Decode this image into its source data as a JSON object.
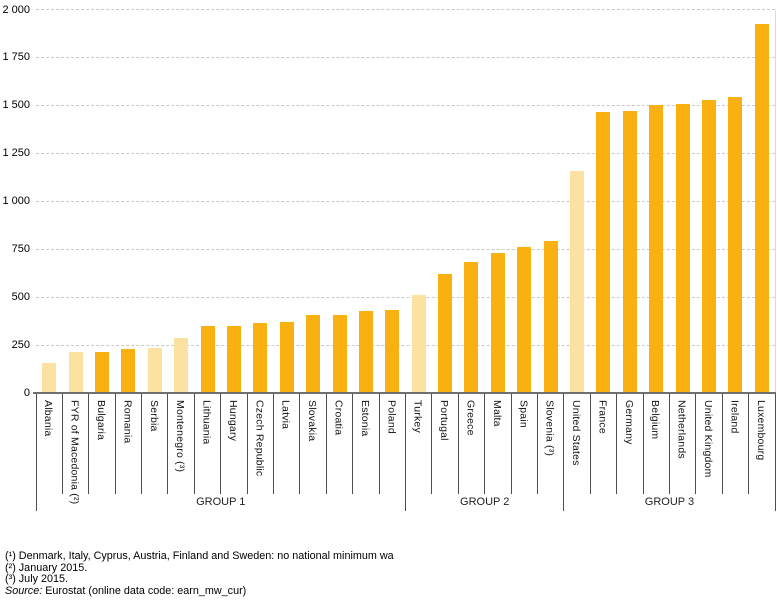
{
  "chart_data": {
    "type": "bar",
    "title": "",
    "xlabel": "",
    "ylabel": "",
    "y_axis": {
      "min": 0,
      "max": 2000,
      "step": 250,
      "tick_labels": [
        "0",
        "250",
        "500",
        "750",
        "1 000",
        "1 250",
        "1 500",
        "1 750",
        "2 000"
      ],
      "grid": "dashed"
    },
    "legend": "none",
    "colors": {
      "bar_dark": "#F9B112",
      "bar_light": "#FCE2A0",
      "gridline": "#C9C9C9",
      "axis": "#6F6F6F",
      "separator": "#4D4D4D",
      "text": "#000000"
    },
    "bars": [
      {
        "label": "Albania",
        "value": 157,
        "shade": "light"
      },
      {
        "label": "FYR of Macedonia (²)",
        "value": 213,
        "shade": "light"
      },
      {
        "label": "Bulgaria",
        "value": 215,
        "shade": "dark"
      },
      {
        "label": "Romania",
        "value": 232,
        "shade": "dark"
      },
      {
        "label": "Serbia",
        "value": 235,
        "shade": "light"
      },
      {
        "label": "Montenegro (³)",
        "value": 288,
        "shade": "light"
      },
      {
        "label": "Lithuania",
        "value": 350,
        "shade": "dark"
      },
      {
        "label": "Hungary",
        "value": 351,
        "shade": "dark"
      },
      {
        "label": "Czech Republic",
        "value": 366,
        "shade": "dark"
      },
      {
        "label": "Latvia",
        "value": 370,
        "shade": "dark"
      },
      {
        "label": "Slovakia",
        "value": 405,
        "shade": "dark"
      },
      {
        "label": "Croatia",
        "value": 408,
        "shade": "dark"
      },
      {
        "label": "Estonia",
        "value": 430,
        "shade": "dark"
      },
      {
        "label": "Poland",
        "value": 434,
        "shade": "dark"
      },
      {
        "label": "Turkey",
        "value": 511,
        "shade": "light"
      },
      {
        "label": "Portugal",
        "value": 618,
        "shade": "dark"
      },
      {
        "label": "Greece",
        "value": 684,
        "shade": "dark"
      },
      {
        "label": "Malta",
        "value": 728,
        "shade": "dark"
      },
      {
        "label": "Spain",
        "value": 764,
        "shade": "dark"
      },
      {
        "label": "Slovenia (³)",
        "value": 791,
        "shade": "dark"
      },
      {
        "label": "United States",
        "value": 1157,
        "shade": "light"
      },
      {
        "label": "France",
        "value": 1467,
        "shade": "dark"
      },
      {
        "label": "Germany",
        "value": 1473,
        "shade": "dark"
      },
      {
        "label": "Belgium",
        "value": 1502,
        "shade": "dark"
      },
      {
        "label": "Netherlands",
        "value": 1508,
        "shade": "dark"
      },
      {
        "label": "United Kingdom",
        "value": 1530,
        "shade": "dark"
      },
      {
        "label": "Ireland",
        "value": 1546,
        "shade": "dark"
      },
      {
        "label": "Luxembourg",
        "value": 1923,
        "shade": "dark"
      }
    ],
    "groups": [
      {
        "label": "GROUP 1",
        "from": 0,
        "to": 13
      },
      {
        "label": "GROUP 2",
        "from": 14,
        "to": 19
      },
      {
        "label": "GROUP 3",
        "from": 20,
        "to": 27
      }
    ]
  },
  "footnotes": {
    "line1": "(¹) Denmark, Italy, Cyprus, Austria, Finland and Sweden: no national minimum wa",
    "line2": "(²) January 2015.",
    "line3": "(³) July 2015.",
    "source_label": "Source:",
    "source_text": " Eurostat (online data code: earn_mw_cur)"
  }
}
